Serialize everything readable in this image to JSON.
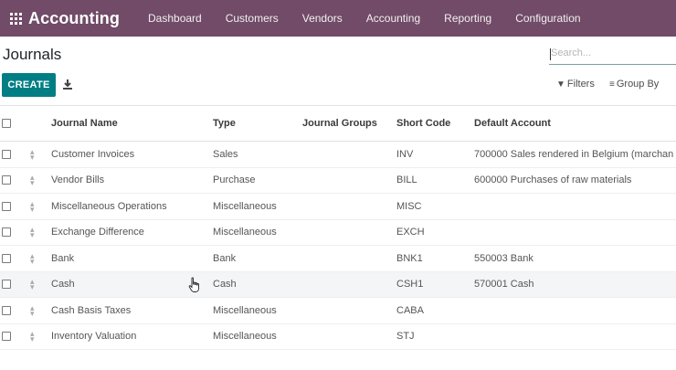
{
  "navbar": {
    "app_title": "Accounting",
    "apps_icon": "grid-icon",
    "menu": [
      {
        "label": "Dashboard"
      },
      {
        "label": "Customers"
      },
      {
        "label": "Vendors"
      },
      {
        "label": "Accounting"
      },
      {
        "label": "Reporting"
      },
      {
        "label": "Configuration"
      }
    ]
  },
  "control_panel": {
    "breadcrumb": "Journals",
    "search_placeholder": "Search...",
    "create_label": "CREATE",
    "download_icon": "download-icon",
    "filters_label": "Filters",
    "groupby_label": "Group By"
  },
  "table": {
    "columns": {
      "name": "Journal Name",
      "type": "Type",
      "groups": "Journal Groups",
      "code": "Short Code",
      "account": "Default Account"
    },
    "rows": [
      {
        "name": "Customer Invoices",
        "type": "Sales",
        "groups": "",
        "code": "INV",
        "account": "700000 Sales rendered in Belgium (marchan"
      },
      {
        "name": "Vendor Bills",
        "type": "Purchase",
        "groups": "",
        "code": "BILL",
        "account": "600000 Purchases of raw materials"
      },
      {
        "name": "Miscellaneous Operations",
        "type": "Miscellaneous",
        "groups": "",
        "code": "MISC",
        "account": ""
      },
      {
        "name": "Exchange Difference",
        "type": "Miscellaneous",
        "groups": "",
        "code": "EXCH",
        "account": ""
      },
      {
        "name": "Bank",
        "type": "Bank",
        "groups": "",
        "code": "BNK1",
        "account": "550003 Bank"
      },
      {
        "name": "Cash",
        "type": "Cash",
        "groups": "",
        "code": "CSH1",
        "account": "570001 Cash"
      },
      {
        "name": "Cash Basis Taxes",
        "type": "Miscellaneous",
        "groups": "",
        "code": "CABA",
        "account": ""
      },
      {
        "name": "Inventory Valuation",
        "type": "Miscellaneous",
        "groups": "",
        "code": "STJ",
        "account": ""
      }
    ]
  },
  "colors": {
    "navbar_bg": "#714b67",
    "primary_button": "#017e84"
  }
}
